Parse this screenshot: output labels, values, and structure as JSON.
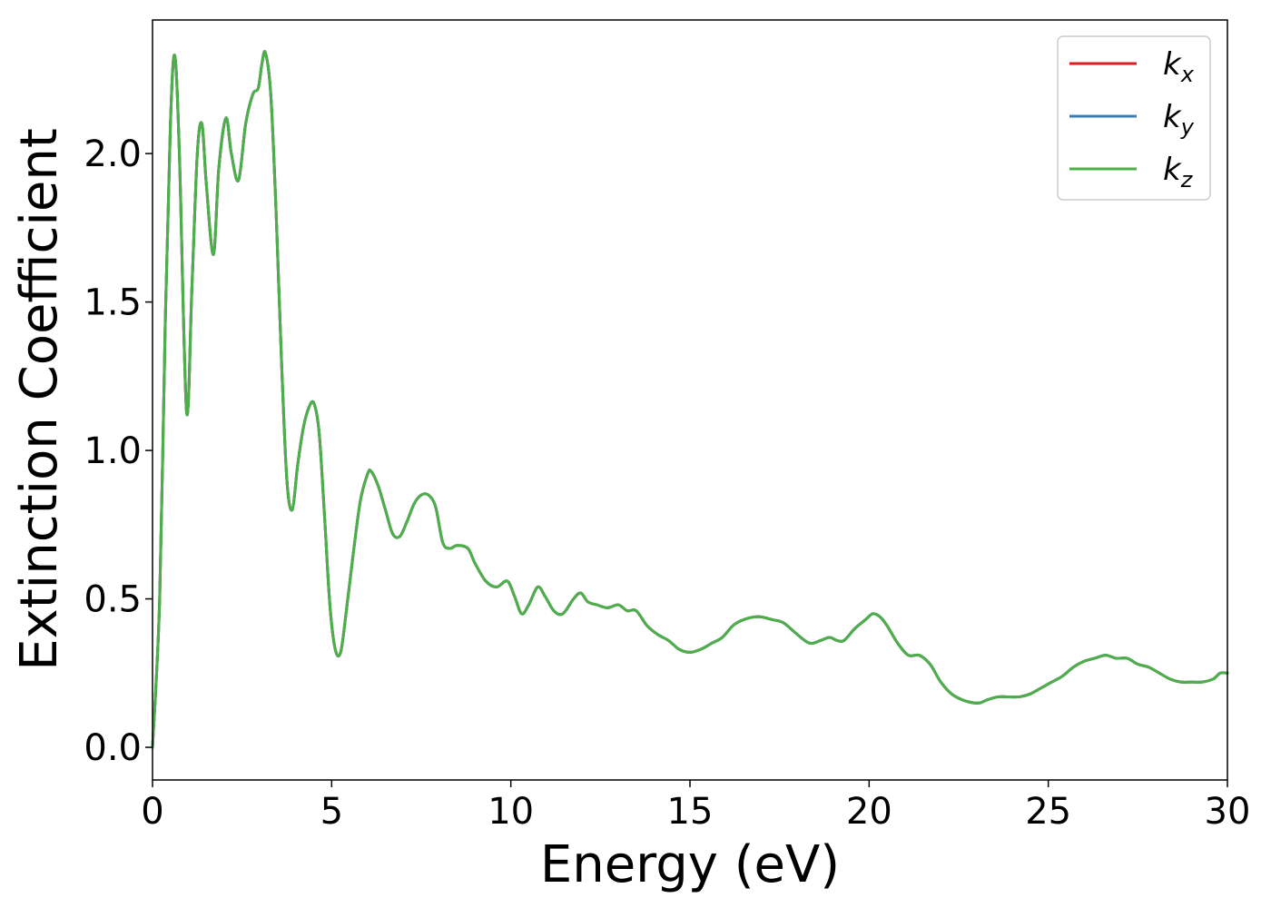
{
  "chart_data": {
    "type": "line",
    "title": "",
    "xlabel": "Energy (eV)",
    "ylabel": "Extinction Coefficient",
    "xlim": [
      0,
      30
    ],
    "ylim": [
      -0.11,
      2.45
    ],
    "xticks": [
      0,
      5,
      10,
      15,
      20,
      25,
      30
    ],
    "xtick_labels": [
      "0",
      "5",
      "10",
      "15",
      "20",
      "25",
      "30"
    ],
    "yticks": [
      0.0,
      0.5,
      1.0,
      1.5,
      2.0
    ],
    "ytick_labels": [
      "0.0",
      "0.5",
      "1.0",
      "1.5",
      "2.0"
    ],
    "grid": false,
    "legend_position": "top-right",
    "x": [
      0,
      0.2,
      0.35,
      0.5,
      0.62,
      0.75,
      0.95,
      1.1,
      1.25,
      1.38,
      1.5,
      1.7,
      1.85,
      2.05,
      2.2,
      2.4,
      2.6,
      2.8,
      2.95,
      3.05,
      3.15,
      3.3,
      3.45,
      3.6,
      3.75,
      3.9,
      4.05,
      4.2,
      4.35,
      4.5,
      4.65,
      4.8,
      4.95,
      5.1,
      5.25,
      5.4,
      5.6,
      5.8,
      6.0,
      6.1,
      6.3,
      6.5,
      6.7,
      6.9,
      7.1,
      7.3,
      7.5,
      7.7,
      7.9,
      8.1,
      8.3,
      8.5,
      8.8,
      9.0,
      9.3,
      9.6,
      9.9,
      10.1,
      10.3,
      10.5,
      10.75,
      10.95,
      11.2,
      11.45,
      11.75,
      11.95,
      12.15,
      12.4,
      12.7,
      13.0,
      13.25,
      13.5,
      13.8,
      14.1,
      14.4,
      14.7,
      15.0,
      15.3,
      15.6,
      15.9,
      16.2,
      16.5,
      16.9,
      17.3,
      17.6,
      17.9,
      18.2,
      18.4,
      18.65,
      18.9,
      19.1,
      19.3,
      19.6,
      19.9,
      20.1,
      20.3,
      20.5,
      20.8,
      21.1,
      21.4,
      21.7,
      22.0,
      22.3,
      22.6,
      22.9,
      23.1,
      23.3,
      23.6,
      23.9,
      24.2,
      24.5,
      24.8,
      25.1,
      25.4,
      25.7,
      26.0,
      26.3,
      26.6,
      26.9,
      27.2,
      27.5,
      27.8,
      28.1,
      28.4,
      28.7,
      29.0,
      29.3,
      29.6,
      29.8,
      30.0
    ],
    "series": [
      {
        "name": "k_x",
        "label_main": "k",
        "label_sub": "x",
        "color": "#e41a1c",
        "values": [
          0.0,
          0.5,
          1.4,
          2.1,
          2.33,
          2.0,
          1.13,
          1.55,
          2.0,
          2.1,
          1.9,
          1.66,
          1.95,
          2.12,
          2.0,
          1.91,
          2.1,
          2.2,
          2.22,
          2.3,
          2.34,
          2.2,
          1.8,
          1.3,
          0.9,
          0.8,
          0.95,
          1.07,
          1.14,
          1.16,
          1.06,
          0.78,
          0.48,
          0.33,
          0.32,
          0.45,
          0.65,
          0.83,
          0.92,
          0.93,
          0.88,
          0.8,
          0.72,
          0.71,
          0.76,
          0.82,
          0.85,
          0.85,
          0.81,
          0.69,
          0.67,
          0.68,
          0.67,
          0.62,
          0.56,
          0.54,
          0.56,
          0.51,
          0.45,
          0.48,
          0.54,
          0.51,
          0.46,
          0.45,
          0.5,
          0.52,
          0.49,
          0.48,
          0.47,
          0.48,
          0.46,
          0.46,
          0.41,
          0.38,
          0.36,
          0.33,
          0.32,
          0.33,
          0.35,
          0.37,
          0.41,
          0.43,
          0.44,
          0.43,
          0.42,
          0.39,
          0.36,
          0.35,
          0.36,
          0.37,
          0.36,
          0.36,
          0.4,
          0.43,
          0.45,
          0.44,
          0.41,
          0.35,
          0.31,
          0.31,
          0.28,
          0.22,
          0.18,
          0.16,
          0.15,
          0.15,
          0.16,
          0.17,
          0.17,
          0.17,
          0.18,
          0.2,
          0.22,
          0.24,
          0.27,
          0.29,
          0.3,
          0.31,
          0.3,
          0.3,
          0.28,
          0.27,
          0.25,
          0.23,
          0.22,
          0.22,
          0.22,
          0.23,
          0.25,
          0.25
        ]
      },
      {
        "name": "k_y",
        "label_main": "k",
        "label_sub": "y",
        "color": "#377eb8",
        "values": [
          0.0,
          0.5,
          1.4,
          2.1,
          2.33,
          2.0,
          1.13,
          1.55,
          2.0,
          2.1,
          1.9,
          1.66,
          1.95,
          2.12,
          2.0,
          1.91,
          2.1,
          2.2,
          2.22,
          2.3,
          2.34,
          2.2,
          1.8,
          1.3,
          0.9,
          0.8,
          0.95,
          1.07,
          1.14,
          1.16,
          1.06,
          0.78,
          0.48,
          0.33,
          0.32,
          0.45,
          0.65,
          0.83,
          0.92,
          0.93,
          0.88,
          0.8,
          0.72,
          0.71,
          0.76,
          0.82,
          0.85,
          0.85,
          0.81,
          0.69,
          0.67,
          0.68,
          0.67,
          0.62,
          0.56,
          0.54,
          0.56,
          0.51,
          0.45,
          0.48,
          0.54,
          0.51,
          0.46,
          0.45,
          0.5,
          0.52,
          0.49,
          0.48,
          0.47,
          0.48,
          0.46,
          0.46,
          0.41,
          0.38,
          0.36,
          0.33,
          0.32,
          0.33,
          0.35,
          0.37,
          0.41,
          0.43,
          0.44,
          0.43,
          0.42,
          0.39,
          0.36,
          0.35,
          0.36,
          0.37,
          0.36,
          0.36,
          0.4,
          0.43,
          0.45,
          0.44,
          0.41,
          0.35,
          0.31,
          0.31,
          0.28,
          0.22,
          0.18,
          0.16,
          0.15,
          0.15,
          0.16,
          0.17,
          0.17,
          0.17,
          0.18,
          0.2,
          0.22,
          0.24,
          0.27,
          0.29,
          0.3,
          0.31,
          0.3,
          0.3,
          0.28,
          0.27,
          0.25,
          0.23,
          0.22,
          0.22,
          0.22,
          0.23,
          0.25,
          0.25
        ]
      },
      {
        "name": "k_z",
        "label_main": "k",
        "label_sub": "z",
        "color": "#4daf4a",
        "values": [
          0.0,
          0.5,
          1.4,
          2.1,
          2.33,
          2.0,
          1.13,
          1.55,
          2.0,
          2.1,
          1.9,
          1.66,
          1.95,
          2.12,
          2.0,
          1.91,
          2.1,
          2.2,
          2.22,
          2.3,
          2.34,
          2.2,
          1.8,
          1.3,
          0.9,
          0.8,
          0.95,
          1.07,
          1.14,
          1.16,
          1.06,
          0.78,
          0.48,
          0.33,
          0.32,
          0.45,
          0.65,
          0.83,
          0.92,
          0.93,
          0.88,
          0.8,
          0.72,
          0.71,
          0.76,
          0.82,
          0.85,
          0.85,
          0.81,
          0.69,
          0.67,
          0.68,
          0.67,
          0.62,
          0.56,
          0.54,
          0.56,
          0.51,
          0.45,
          0.48,
          0.54,
          0.51,
          0.46,
          0.45,
          0.5,
          0.52,
          0.49,
          0.48,
          0.47,
          0.48,
          0.46,
          0.46,
          0.41,
          0.38,
          0.36,
          0.33,
          0.32,
          0.33,
          0.35,
          0.37,
          0.41,
          0.43,
          0.44,
          0.43,
          0.42,
          0.39,
          0.36,
          0.35,
          0.36,
          0.37,
          0.36,
          0.36,
          0.4,
          0.43,
          0.45,
          0.44,
          0.41,
          0.35,
          0.31,
          0.31,
          0.28,
          0.22,
          0.18,
          0.16,
          0.15,
          0.15,
          0.16,
          0.17,
          0.17,
          0.17,
          0.18,
          0.2,
          0.22,
          0.24,
          0.27,
          0.29,
          0.3,
          0.31,
          0.3,
          0.3,
          0.28,
          0.27,
          0.25,
          0.23,
          0.22,
          0.22,
          0.22,
          0.23,
          0.25,
          0.25
        ]
      }
    ]
  }
}
